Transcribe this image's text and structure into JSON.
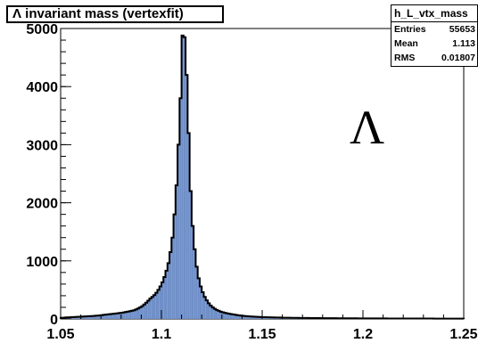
{
  "chart_data": {
    "type": "bar",
    "title": "Λ invariant mass (vertexfit)",
    "xlim": [
      1.05,
      1.25
    ],
    "ylim": [
      0,
      5000
    ],
    "x_ticks": [
      "1.05",
      "1.1",
      "1.15",
      "1.2",
      "1.25"
    ],
    "y_ticks": [
      "0",
      "1000",
      "2000",
      "3000",
      "4000",
      "5000"
    ],
    "bin_width": 0.001,
    "fill_color": "#6f8fc8",
    "annotation": "Λ",
    "stats": {
      "name": "h_L_vtx_mass",
      "rows": [
        {
          "label": "Entries",
          "value": "55653"
        },
        {
          "label": "Mean",
          "value": "1.113"
        },
        {
          "label": "RMS",
          "value": "0.01807"
        }
      ]
    },
    "bins_x_start": 1.05,
    "counts": [
      20,
      22,
      24,
      26,
      28,
      30,
      32,
      34,
      36,
      38,
      40,
      42,
      44,
      46,
      48,
      50,
      52,
      55,
      58,
      62,
      66,
      70,
      74,
      78,
      82,
      86,
      90,
      94,
      98,
      103,
      108,
      114,
      120,
      127,
      134,
      142,
      150,
      165,
      180,
      200,
      220,
      250,
      280,
      315,
      350,
      380,
      410,
      450,
      500,
      560,
      630,
      720,
      830,
      960,
      1150,
      1400,
      1800,
      2300,
      3000,
      3800,
      4880,
      4850,
      4200,
      3200,
      2200,
      1600,
      1200,
      900,
      700,
      560,
      460,
      380,
      320,
      270,
      230,
      200,
      175,
      155,
      140,
      125,
      115,
      105,
      98,
      90,
      84,
      78,
      72,
      67,
      62,
      58,
      54,
      50,
      47,
      44,
      42,
      40,
      38,
      36,
      34,
      32,
      31,
      30,
      29,
      28,
      27,
      26,
      25,
      24,
      24,
      23,
      22,
      22,
      21,
      21,
      20,
      20,
      19,
      19,
      18,
      18,
      17,
      17,
      17,
      16,
      16,
      16,
      15,
      15,
      15,
      14,
      14,
      14,
      14,
      13,
      13,
      13,
      13,
      12,
      12,
      12,
      12,
      12,
      11,
      11,
      11,
      11,
      11,
      10,
      10,
      10,
      10,
      10,
      10,
      10,
      9,
      9,
      9,
      9,
      9,
      9,
      9,
      9,
      8,
      8,
      8,
      8,
      8,
      8,
      8,
      8,
      8,
      8,
      8,
      7,
      7,
      7,
      7,
      7,
      7,
      7,
      7,
      7,
      7,
      7,
      7,
      6,
      6,
      6,
      6,
      6,
      6,
      6,
      6,
      6,
      6,
      6,
      6,
      6,
      6,
      6
    ]
  }
}
